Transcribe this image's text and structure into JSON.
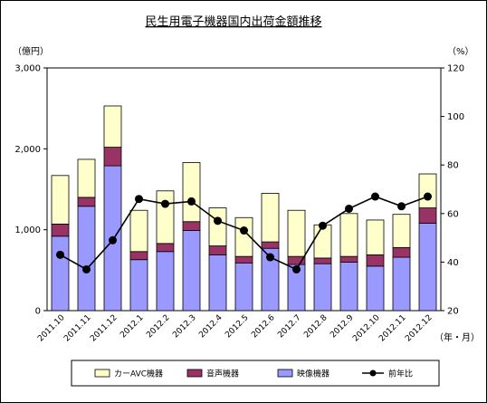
{
  "chart_data": {
    "type": "bar",
    "stacked": true,
    "title": "民生用電子機器国内出荷金額推移",
    "left_unit": "（億円）",
    "right_unit": "（%）",
    "x_unit": "（年・月）",
    "categories": [
      "2011.10",
      "2011.11",
      "2011.12",
      "2012.1",
      "2012.2",
      "2012.3",
      "2012.4",
      "2012.5",
      "2012.6",
      "2012.7",
      "2012.8",
      "2012.9",
      "2012.10",
      "2012.11",
      "2012.12"
    ],
    "ylim": [
      0,
      3000
    ],
    "yticks": [
      "0",
      "1,000",
      "2,000",
      "3,000"
    ],
    "y2lim": [
      20,
      120
    ],
    "y2ticks": [
      "20",
      "40",
      "60",
      "80",
      "100",
      "120"
    ],
    "series": [
      {
        "name": "映像機器",
        "kind": "bar",
        "color": "#9999ff",
        "values": [
          920,
          1290,
          1790,
          630,
          730,
          990,
          690,
          590,
          770,
          570,
          580,
          600,
          550,
          660,
          1080
        ]
      },
      {
        "name": "音声機器",
        "kind": "bar",
        "color": "#993366",
        "values": [
          150,
          110,
          230,
          100,
          100,
          110,
          110,
          80,
          80,
          100,
          70,
          70,
          140,
          120,
          190
        ]
      },
      {
        "name": "カーAVC機器",
        "kind": "bar",
        "color": "#ffffcc",
        "values": [
          600,
          470,
          510,
          510,
          650,
          730,
          470,
          480,
          600,
          570,
          410,
          530,
          430,
          410,
          420
        ]
      },
      {
        "name": "前年比",
        "kind": "line",
        "axis": "right",
        "color": "#000000",
        "values": [
          43,
          37,
          49,
          66,
          64,
          65,
          57,
          53,
          42,
          37,
          55,
          62,
          67,
          63,
          67
        ]
      }
    ],
    "legend_position": "bottom",
    "legend_order": [
      "カーAVC機器",
      "音声機器",
      "映像機器",
      "前年比"
    ]
  }
}
